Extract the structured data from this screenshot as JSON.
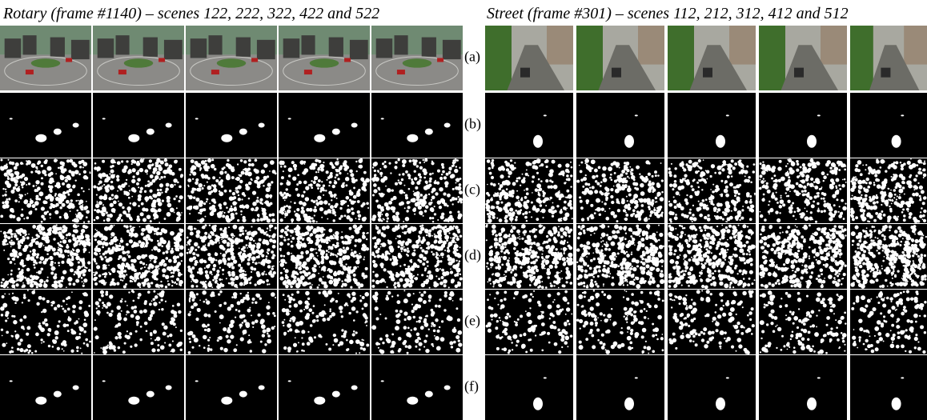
{
  "left_title": "Rotary (frame #1140) – scenes 122, 222, 322, 422 and 522",
  "right_title": "Street (frame #301) – scenes 112, 212, 312, 412 and 512",
  "row_labels": [
    "(a)",
    "(b)",
    "(c)",
    "(d)",
    "(e)",
    "(f)"
  ]
}
